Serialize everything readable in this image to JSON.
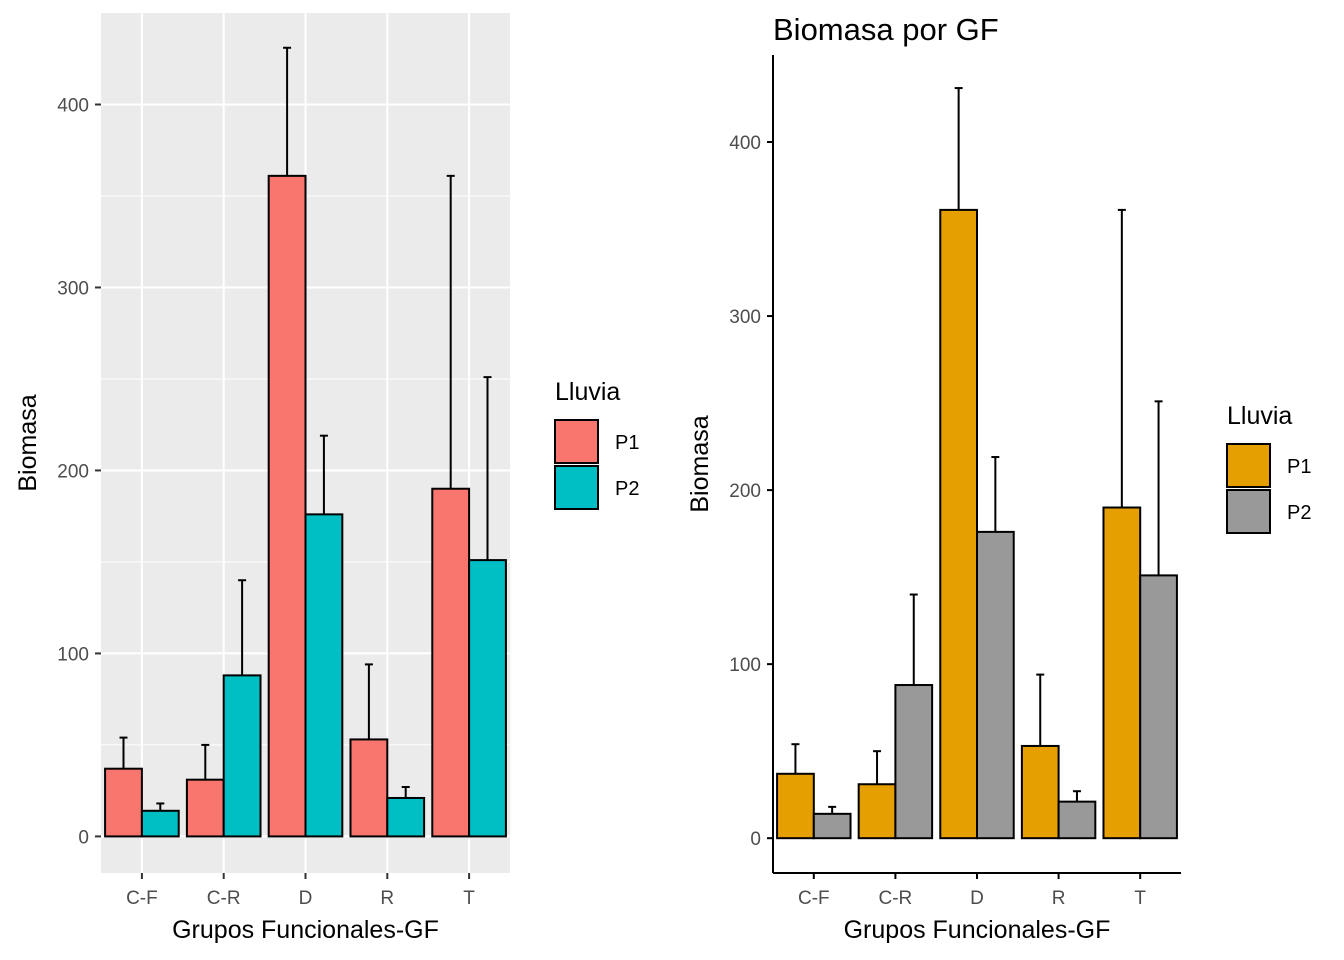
{
  "chart_data": [
    {
      "type": "bar",
      "title": "",
      "xlabel": "Grupos Funcionales-GF",
      "ylabel": "Biomasa",
      "categories": [
        "C-F",
        "C-R",
        "D",
        "R",
        "T"
      ],
      "yticks": [
        0,
        100,
        200,
        300,
        400
      ],
      "ylim": [
        -20,
        450
      ],
      "grid": true,
      "theme": "gray",
      "legend": {
        "title": "Lluvia",
        "position": "right"
      },
      "series": [
        {
          "name": "P1",
          "color": "#F8766D",
          "values": [
            37,
            31,
            361,
            53,
            190
          ],
          "error_upper": [
            54,
            50,
            431,
            94,
            361
          ]
        },
        {
          "name": "P2",
          "color": "#00BFC4",
          "values": [
            14,
            88,
            176,
            21,
            151
          ],
          "error_upper": [
            18,
            140,
            219,
            27,
            251
          ]
        }
      ]
    },
    {
      "type": "bar",
      "title": "Biomasa por GF",
      "xlabel": "Grupos Funcionales-GF",
      "ylabel": "Biomasa",
      "categories": [
        "C-F",
        "C-R",
        "D",
        "R",
        "T"
      ],
      "yticks": [
        0,
        100,
        200,
        300,
        400
      ],
      "ylim": [
        -20,
        450
      ],
      "grid": false,
      "theme": "classic",
      "legend": {
        "title": "Lluvia",
        "position": "right"
      },
      "series": [
        {
          "name": "P1",
          "color": "#E69F00",
          "values": [
            37,
            31,
            361,
            53,
            190
          ],
          "error_upper": [
            54,
            50,
            431,
            94,
            361
          ]
        },
        {
          "name": "P2",
          "color": "#999999",
          "values": [
            14,
            88,
            176,
            21,
            151
          ],
          "error_upper": [
            18,
            140,
            219,
            27,
            251
          ]
        }
      ]
    }
  ]
}
